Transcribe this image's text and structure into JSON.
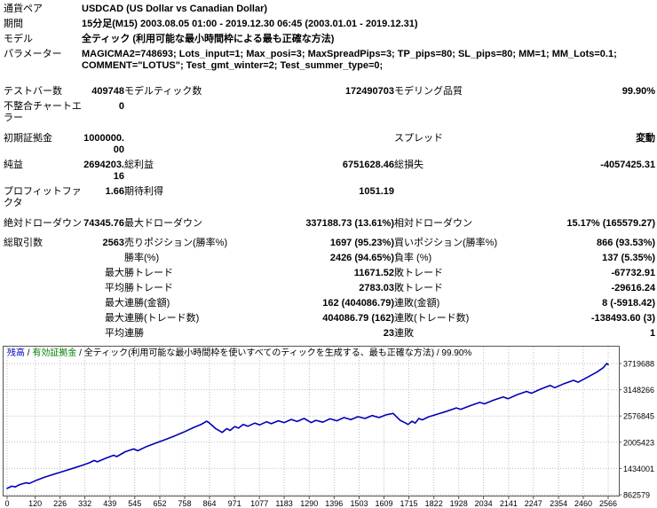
{
  "colors": {
    "balance_line": "#0000b8",
    "equity_label": "#008000",
    "grid": "#bdbdbd",
    "chart_border": "#555555",
    "text": "#000000"
  },
  "report": {
    "rows": [
      {
        "l1": "通貨ペア",
        "wide": "USDCAD (US Dollar vs Canadian Dollar)"
      },
      {
        "l1": "期間",
        "wide": "15分足(M15) 2003.08.05 01:00 - 2019.12.30 06:45 (2003.01.01 - 2019.12.31)"
      },
      {
        "l1": "モデル",
        "wide": "全ティック (利用可能な最小時間枠による最も正確な方法)"
      },
      {
        "l1": "パラメーター",
        "wide": "MAGICMA2=748693; Lots_input=1; Max_posi=3; MaxSpreadPips=3; TP_pips=80; SL_pips=80; MM=1; MM_Lots=0.1; COMMENT=\"LOTUS\"; Test_gmt_winter=2; Test_summer_type=0;"
      },
      {
        "gap": 12
      },
      {
        "l1": "テストバー数",
        "v1": "409748",
        "l2": "モデルティック数",
        "v2": "172490703",
        "l3": "モデリング品質",
        "v3": "99.90%"
      },
      {
        "l1": "不整合チャートエラー",
        "v1": "0"
      },
      {
        "gap": 6
      },
      {
        "l1": "初期証拠金",
        "v1": "1000000.00",
        "l2": "",
        "v2": "",
        "l3": "スプレッド",
        "v3": "変動"
      },
      {
        "l1": "純益",
        "v1": "2694203.16",
        "l2": "総利益",
        "v2": "6751628.46",
        "l3": "総損失",
        "v3": "-4057425.31"
      },
      {
        "l1": "プロフィットファクタ",
        "v1": "1.66",
        "l2": "期待利得",
        "v2": "1051.19",
        "l3": "",
        "v3": ""
      },
      {
        "gap": 6
      },
      {
        "l1": "絶対ドローダウン",
        "v1": "74345.76",
        "l2": "最大ドローダウン",
        "v2": "337188.73 (13.61%)",
        "l3": "相対ドローダウン",
        "v3": "15.17% (165579.27)"
      },
      {
        "gap": 5
      },
      {
        "l1": "総取引数",
        "v1": "2563",
        "l2": "売りポジション(勝率%)",
        "v2": "1697 (95.23%)",
        "l3": "買いポジション(勝率%)",
        "v3": "866 (93.53%)"
      },
      {
        "l1": "",
        "v1": "",
        "l2": "勝率(%)",
        "v2": "2426 (94.65%)",
        "l3": "負率 (%)",
        "v3": "137 (5.35%)"
      },
      {
        "p": "最大",
        "l2": "勝トレード",
        "v2": "11671.52",
        "l3": "敗トレード",
        "v3": "-67732.91"
      },
      {
        "p": "平均",
        "l2": "勝トレード",
        "v2": "2783.03",
        "l3": "敗トレード",
        "v3": "-29616.24"
      },
      {
        "p": "最大",
        "l2": "連勝(金額)",
        "v2": "162 (404086.79)",
        "l3": "連敗(金額)",
        "v3": "8 (-5918.42)"
      },
      {
        "p": "最大",
        "l2": "連勝(トレード数)",
        "v2": "404086.79 (162)",
        "l3": "連敗(トレード数)",
        "v3": "-138493.60 (3)"
      },
      {
        "p": "平均",
        "l2": "連勝",
        "v2": "23",
        "l3": "連敗",
        "v3": "1"
      }
    ]
  },
  "chart_data": {
    "type": "line",
    "legend": {
      "balance_label": "残高",
      "equity_label": "有効証拠金",
      "model_label": "全ティック(利用可能な最小時間枠を使いすべてのティックを生成する、最も正確な方法)",
      "quality": "99.90%",
      "separator": " / "
    },
    "xlabel": "",
    "ylabel": "",
    "xlim": [
      0,
      2566
    ],
    "ylim": [
      862579,
      3719688
    ],
    "grid": true,
    "legend_position": "top-left",
    "x_ticks": [
      0,
      120,
      226,
      332,
      439,
      545,
      652,
      758,
      864,
      971,
      1077,
      1183,
      1290,
      1396,
      1503,
      1609,
      1715,
      1822,
      1928,
      2034,
      2141,
      2247,
      2354,
      2460,
      2566
    ],
    "y_ticks": [
      862579,
      1434001,
      2005423,
      2576845,
      3148266,
      3719688
    ],
    "series": [
      {
        "name": "残高",
        "color": "#0000b8",
        "points": [
          [
            0,
            1000000
          ],
          [
            20,
            1048000
          ],
          [
            35,
            1032000
          ],
          [
            55,
            1085000
          ],
          [
            80,
            1122000
          ],
          [
            95,
            1108000
          ],
          [
            125,
            1178000
          ],
          [
            160,
            1242000
          ],
          [
            200,
            1308000
          ],
          [
            240,
            1372000
          ],
          [
            280,
            1436000
          ],
          [
            315,
            1492000
          ],
          [
            350,
            1556000
          ],
          [
            372,
            1608000
          ],
          [
            385,
            1578000
          ],
          [
            420,
            1655000
          ],
          [
            455,
            1722000
          ],
          [
            468,
            1692000
          ],
          [
            505,
            1798000
          ],
          [
            540,
            1858000
          ],
          [
            558,
            1820000
          ],
          [
            595,
            1910000
          ],
          [
            635,
            1986000
          ],
          [
            675,
            2062000
          ],
          [
            715,
            2142000
          ],
          [
            755,
            2228000
          ],
          [
            795,
            2322000
          ],
          [
            830,
            2398000
          ],
          [
            852,
            2462000
          ],
          [
            862,
            2430000
          ],
          [
            872,
            2385000
          ],
          [
            890,
            2302000
          ],
          [
            905,
            2258000
          ],
          [
            918,
            2218000
          ],
          [
            938,
            2302000
          ],
          [
            952,
            2262000
          ],
          [
            972,
            2348000
          ],
          [
            988,
            2312000
          ],
          [
            1008,
            2392000
          ],
          [
            1028,
            2352000
          ],
          [
            1058,
            2422000
          ],
          [
            1078,
            2382000
          ],
          [
            1108,
            2452000
          ],
          [
            1128,
            2408000
          ],
          [
            1158,
            2472000
          ],
          [
            1183,
            2432000
          ],
          [
            1213,
            2502000
          ],
          [
            1238,
            2458000
          ],
          [
            1268,
            2522000
          ],
          [
            1298,
            2432000
          ],
          [
            1318,
            2482000
          ],
          [
            1348,
            2442000
          ],
          [
            1378,
            2516000
          ],
          [
            1408,
            2472000
          ],
          [
            1438,
            2542000
          ],
          [
            1468,
            2498000
          ],
          [
            1498,
            2562000
          ],
          [
            1528,
            2522000
          ],
          [
            1558,
            2586000
          ],
          [
            1588,
            2542000
          ],
          [
            1618,
            2602000
          ],
          [
            1648,
            2632000
          ],
          [
            1662,
            2562000
          ],
          [
            1678,
            2482000
          ],
          [
            1698,
            2432000
          ],
          [
            1712,
            2392000
          ],
          [
            1728,
            2462000
          ],
          [
            1742,
            2422000
          ],
          [
            1758,
            2522000
          ],
          [
            1772,
            2492000
          ],
          [
            1800,
            2560000
          ],
          [
            1840,
            2622000
          ],
          [
            1878,
            2682000
          ],
          [
            1918,
            2752000
          ],
          [
            1936,
            2722000
          ],
          [
            1978,
            2802000
          ],
          [
            2018,
            2872000
          ],
          [
            2038,
            2842000
          ],
          [
            2078,
            2922000
          ],
          [
            2118,
            2992000
          ],
          [
            2138,
            2952000
          ],
          [
            2178,
            3042000
          ],
          [
            2218,
            3112000
          ],
          [
            2238,
            3072000
          ],
          [
            2278,
            3162000
          ],
          [
            2318,
            3242000
          ],
          [
            2338,
            3192000
          ],
          [
            2378,
            3282000
          ],
          [
            2418,
            3352000
          ],
          [
            2438,
            3312000
          ],
          [
            2478,
            3422000
          ],
          [
            2518,
            3532000
          ],
          [
            2545,
            3628000
          ],
          [
            2560,
            3719688
          ],
          [
            2566,
            3694203
          ]
        ]
      }
    ]
  }
}
